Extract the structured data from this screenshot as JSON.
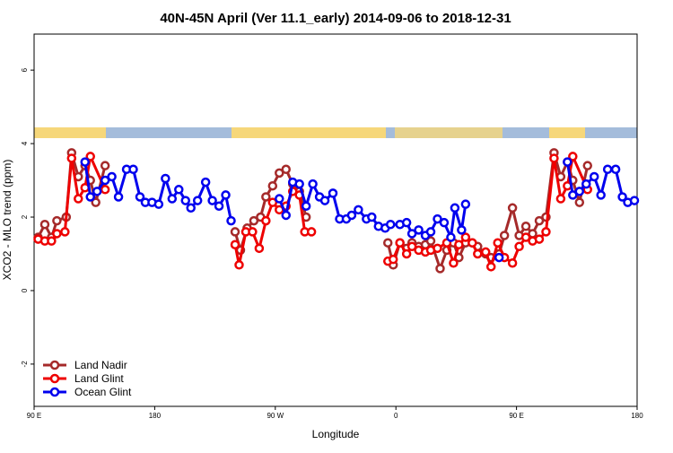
{
  "chart_data": {
    "type": "line",
    "title": "40N-45N April (Ver 11.1_early)   2014-09-06 to 2018-12-31",
    "xlabel": "Longitude",
    "ylabel": "XCO2 - MLO trend (ppm)",
    "xlim": [
      90,
      540
    ],
    "ylim": [
      -3.15,
      6.98
    ],
    "xticks": [
      {
        "value": 90,
        "label": "90 E"
      },
      180,
      {
        "value": 270,
        "label": "90 W"
      },
      {
        "value": 360,
        "label": "0"
      },
      {
        "value": 450,
        "label": "90 E"
      },
      {
        "value": 540,
        "label": "180"
      }
    ],
    "yticks": [
      -2,
      0,
      2,
      4,
      6
    ],
    "legend": "bottom-left",
    "series": [
      {
        "name": "Land Nadir",
        "color": "#a52a2a",
        "x": [
          93,
          98,
          103,
          107,
          114,
          118,
          123,
          128,
          132,
          136,
          143,
          null,
          240,
          244,
          249,
          254,
          259,
          263,
          268,
          273,
          278,
          283,
          288,
          293,
          null,
          354,
          358,
          363,
          368,
          372,
          377,
          382,
          386,
          393,
          398,
          403,
          407,
          412,
          417,
          421,
          427,
          431,
          437,
          441,
          447,
          452,
          457,
          462,
          467,
          472,
          478,
          483,
          488,
          492,
          497,
          503
        ],
        "values": [
          1.45,
          1.8,
          1.45,
          1.9,
          2.0,
          3.75,
          3.1,
          3.4,
          3.0,
          2.4,
          3.4,
          null,
          1.6,
          1.1,
          1.7,
          1.9,
          2.0,
          2.55,
          2.85,
          3.2,
          3.3,
          2.9,
          2.7,
          2.0,
          null,
          1.3,
          0.7,
          1.3,
          1.15,
          1.3,
          1.2,
          1.25,
          1.35,
          0.6,
          1.1,
          1.3,
          0.9,
          1.3,
          1.3,
          1.2,
          1.0,
          0.9,
          1.0,
          1.5,
          2.25,
          1.5,
          1.75,
          1.55,
          1.9,
          2.0,
          3.75,
          3.1,
          3.5,
          3.0,
          2.4,
          3.4
        ]
      },
      {
        "name": "Land Glint",
        "color": "#ee0000",
        "x": [
          93,
          98,
          103,
          107,
          113,
          118,
          123,
          128,
          132,
          143,
          null,
          240,
          243,
          248,
          253,
          258,
          263,
          268,
          273,
          278,
          283,
          288,
          292,
          297,
          null,
          354,
          358,
          363,
          368,
          372,
          377,
          382,
          386,
          391,
          398,
          403,
          407,
          412,
          417,
          421,
          427,
          431,
          436,
          441,
          447,
          452,
          457,
          462,
          467,
          472,
          478,
          483,
          488,
          492,
          503
        ],
        "values": [
          1.4,
          1.35,
          1.35,
          1.55,
          1.6,
          3.6,
          2.5,
          2.8,
          3.65,
          2.75,
          null,
          1.25,
          0.7,
          1.6,
          1.6,
          1.15,
          1.9,
          2.4,
          2.2,
          2.3,
          2.7,
          2.6,
          1.6,
          1.6,
          null,
          0.8,
          0.85,
          1.3,
          1.0,
          1.2,
          1.1,
          1.05,
          1.1,
          1.15,
          1.3,
          0.75,
          1.25,
          1.45,
          1.3,
          1.0,
          1.05,
          0.65,
          1.3,
          0.9,
          0.75,
          1.2,
          1.45,
          1.35,
          1.4,
          1.6,
          3.6,
          2.5,
          2.85,
          3.65,
          2.75
        ]
      },
      {
        "name": "Ocean Glint",
        "color": "#0000ee",
        "x": [
          128,
          132,
          137,
          143,
          148,
          153,
          159,
          164,
          169,
          173,
          178,
          183,
          188,
          193,
          198,
          203,
          207,
          212,
          218,
          223,
          228,
          233,
          237,
          null,
          273,
          278,
          283,
          288,
          293,
          298,
          303,
          307,
          313,
          318,
          323,
          327,
          332,
          338,
          342,
          347,
          352,
          356,
          363,
          368,
          372,
          377,
          382,
          386,
          391,
          396,
          401,
          404,
          409,
          412,
          null,
          437,
          null,
          488,
          492,
          497,
          502,
          508,
          513,
          518,
          524,
          529,
          533,
          538
        ],
        "values": [
          3.5,
          2.55,
          2.7,
          3.0,
          3.1,
          2.55,
          3.3,
          3.3,
          2.55,
          2.4,
          2.4,
          2.35,
          3.05,
          2.5,
          2.75,
          2.45,
          2.25,
          2.45,
          2.95,
          2.45,
          2.3,
          2.6,
          1.9,
          null,
          2.5,
          2.05,
          2.95,
          2.9,
          2.3,
          2.9,
          2.55,
          2.45,
          2.65,
          1.95,
          1.95,
          2.05,
          2.2,
          1.95,
          2.0,
          1.75,
          1.7,
          1.8,
          1.8,
          1.85,
          1.55,
          1.65,
          1.5,
          1.6,
          1.95,
          1.85,
          1.45,
          2.25,
          1.65,
          2.35,
          null,
          0.9,
          null,
          3.5,
          2.6,
          2.7,
          2.9,
          3.1,
          2.6,
          3.3,
          3.3,
          2.55,
          2.4,
          2.45
        ]
      }
    ]
  }
}
